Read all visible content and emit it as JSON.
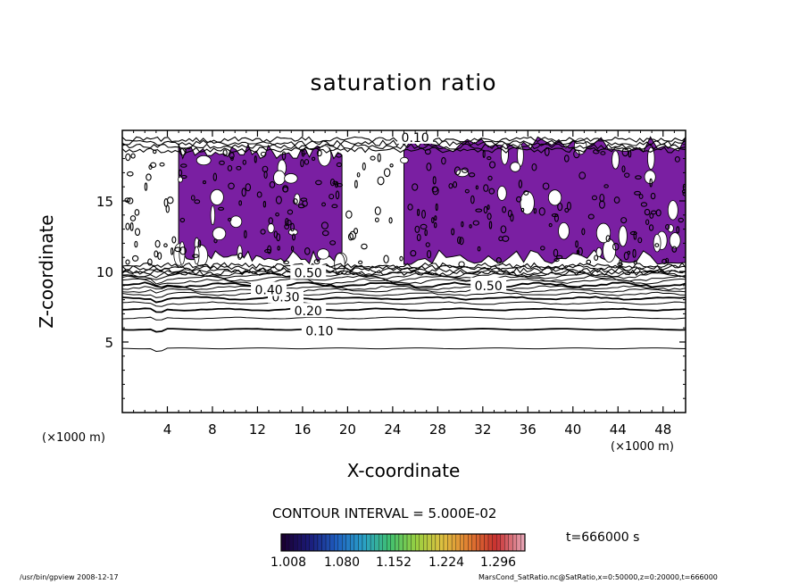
{
  "chart_data": {
    "type": "contour",
    "title": "saturation ratio",
    "xlabel": "X-coordinate",
    "ylabel": "Z-coordinate",
    "x_unit_label": "(×1000 m)",
    "xlim": [
      0,
      50
    ],
    "ylim": [
      0,
      20
    ],
    "x_ticks": [
      4,
      8,
      12,
      16,
      20,
      24,
      28,
      32,
      36,
      40,
      44,
      48
    ],
    "y_ticks": [
      5,
      10,
      15
    ],
    "contour_interval_label": "CONTOUR INTERVAL = 5.000E-02",
    "contour_labels": [
      {
        "text": "0.10",
        "x": 17.5,
        "z": 5.8
      },
      {
        "text": "0.20",
        "x": 16.5,
        "z": 7.2
      },
      {
        "text": "0.30",
        "x": 14.5,
        "z": 8.2
      },
      {
        "text": "0.40",
        "x": 13.0,
        "z": 8.7
      },
      {
        "text": "0.50",
        "x": 16.5,
        "z": 9.9
      },
      {
        "text": "0.50",
        "x": 32.5,
        "z": 9.0
      },
      {
        "text": "0.10",
        "x": 26.0,
        "z": 19.5
      }
    ],
    "contour_levels": [
      {
        "level": 0.05,
        "z": 4.55
      },
      {
        "level": 0.1,
        "z": 5.9
      },
      {
        "level": 0.15,
        "z": 6.7
      },
      {
        "level": 0.2,
        "z": 7.3
      },
      {
        "level": 0.25,
        "z": 7.75
      },
      {
        "level": 0.3,
        "z": 8.1
      },
      {
        "level": 0.35,
        "z": 8.4
      },
      {
        "level": 0.4,
        "z": 8.65
      },
      {
        "level": 0.45,
        "z": 8.85
      },
      {
        "level": 0.5,
        "z": 9.05
      },
      {
        "level": 0.6,
        "z": 9.3
      },
      {
        "level": 0.7,
        "z": 9.5
      },
      {
        "level": 0.8,
        "z": 9.7
      },
      {
        "level": 0.9,
        "z": 9.85
      }
    ],
    "shaded_regions": [
      {
        "name": "supersaturated-left",
        "x": [
          5.0,
          19.5
        ],
        "z": [
          10.5,
          18.5
        ]
      },
      {
        "name": "supersaturated-right",
        "x": [
          25.0,
          50.0
        ],
        "z": [
          10.5,
          19.0
        ]
      }
    ],
    "colorbar": {
      "ticks": [
        "1.008",
        "1.080",
        "1.152",
        "1.224",
        "1.296"
      ],
      "range": [
        1.008,
        1.35
      ],
      "colors": [
        "#1a0033",
        "#1b1b7a",
        "#1f5fc0",
        "#2aa0c8",
        "#3fc070",
        "#9ad040",
        "#e0c040",
        "#e07a30",
        "#c83030",
        "#e6a0b0"
      ]
    },
    "fill_color": "#7a1fa2",
    "time_label": "t=666000 s"
  },
  "footer": {
    "left": "/usr/bin/gpview   2008-12-17",
    "right": "MarsCond_SatRatio.nc@SatRatio,x=0:50000,z=0:20000,t=666000"
  }
}
